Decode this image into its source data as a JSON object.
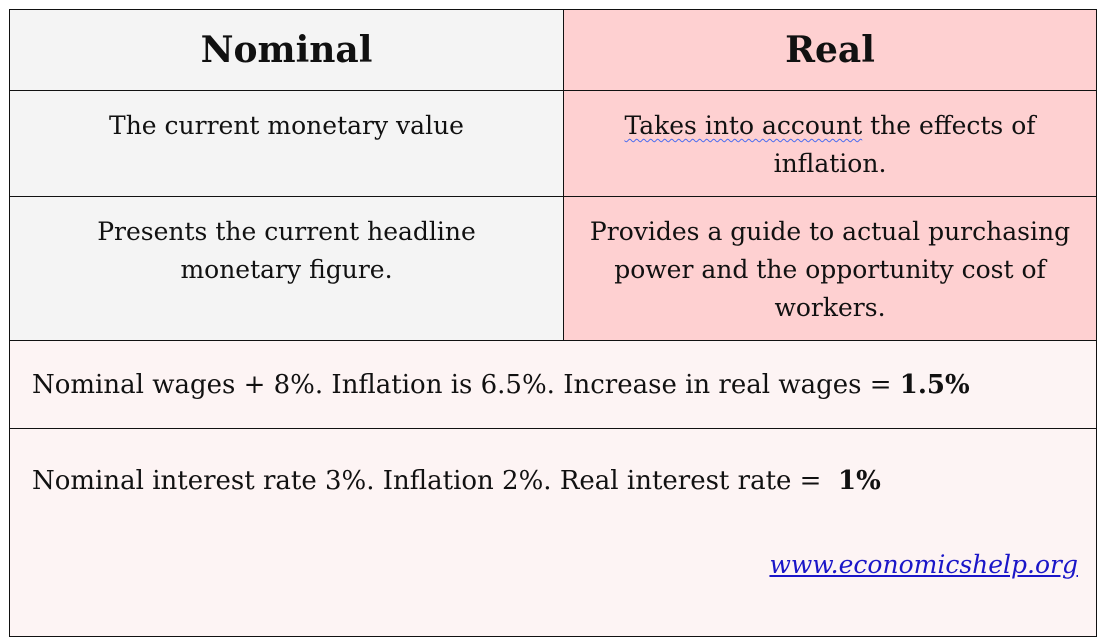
{
  "header": {
    "nominal": "Nominal",
    "real": "Real"
  },
  "rows": [
    {
      "nominal": "The current monetary value",
      "real_underlined": "Takes into account",
      "real_rest": " the effects of inflation."
    },
    {
      "nominal": "Presents the current headline monetary figure.",
      "real": "Provides a guide to actual purchasing power and the opportunity cost of workers."
    }
  ],
  "examples": [
    {
      "text": "Nominal wages + 8%. Inflation is 6.5%. Increase in real wages = ",
      "result": "1.5%"
    },
    {
      "text": "Nominal interest rate 3%. Inflation 2%. Real interest rate = ",
      "result": "1%"
    }
  ],
  "footer": {
    "link": "www.economicshelp.org",
    "link_color": "#1a16c8"
  },
  "colors": {
    "nominal_bg": "#f4f4f4",
    "real_bg": "#fed0d1",
    "example_bg": "#fdf4f4",
    "border": "#111111"
  }
}
